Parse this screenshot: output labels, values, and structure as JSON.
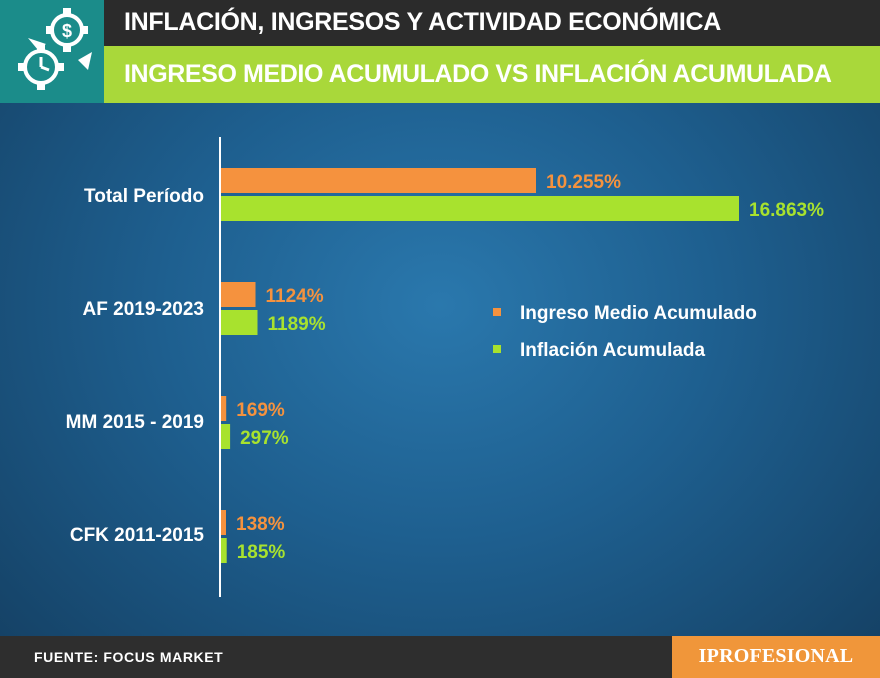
{
  "header": {
    "title": "INFLACIÓN, INGRESOS Y ACTIVIDAD ECONÓMICA",
    "subtitle": "INGRESO MEDIO ACUMULADO VS INFLACIÓN ACUMULADA"
  },
  "footer": {
    "source": "FUENTE: FOCUS MARKET",
    "brand": "IPROFESIONAL"
  },
  "colors": {
    "income": "#f5923e",
    "inflation": "#a8e22e",
    "header_band": "#a9d83a",
    "logo": "#1b8c8a"
  },
  "chart_data": {
    "type": "bar",
    "orientation": "horizontal",
    "title": "INGRESO MEDIO ACUMULADO VS INFLACIÓN ACUMULADA",
    "categories": [
      "Total Período",
      "AF 2019-2023",
      "MM 2015 - 2019",
      "CFK 2011-2015"
    ],
    "series": [
      {
        "name": "Ingreso Medio Acumulado",
        "values": [
          10255,
          1124,
          169,
          138
        ],
        "labels": [
          "10.255%",
          "1124%",
          "169%",
          "138%"
        ]
      },
      {
        "name": "Inflación Acumulada",
        "values": [
          16863,
          1189,
          297,
          185
        ],
        "labels": [
          "16.863%",
          "1189%",
          "297%",
          "185%"
        ]
      }
    ],
    "unit": "%",
    "xlim": [
      0,
      16863
    ],
    "legend_position": "right"
  }
}
